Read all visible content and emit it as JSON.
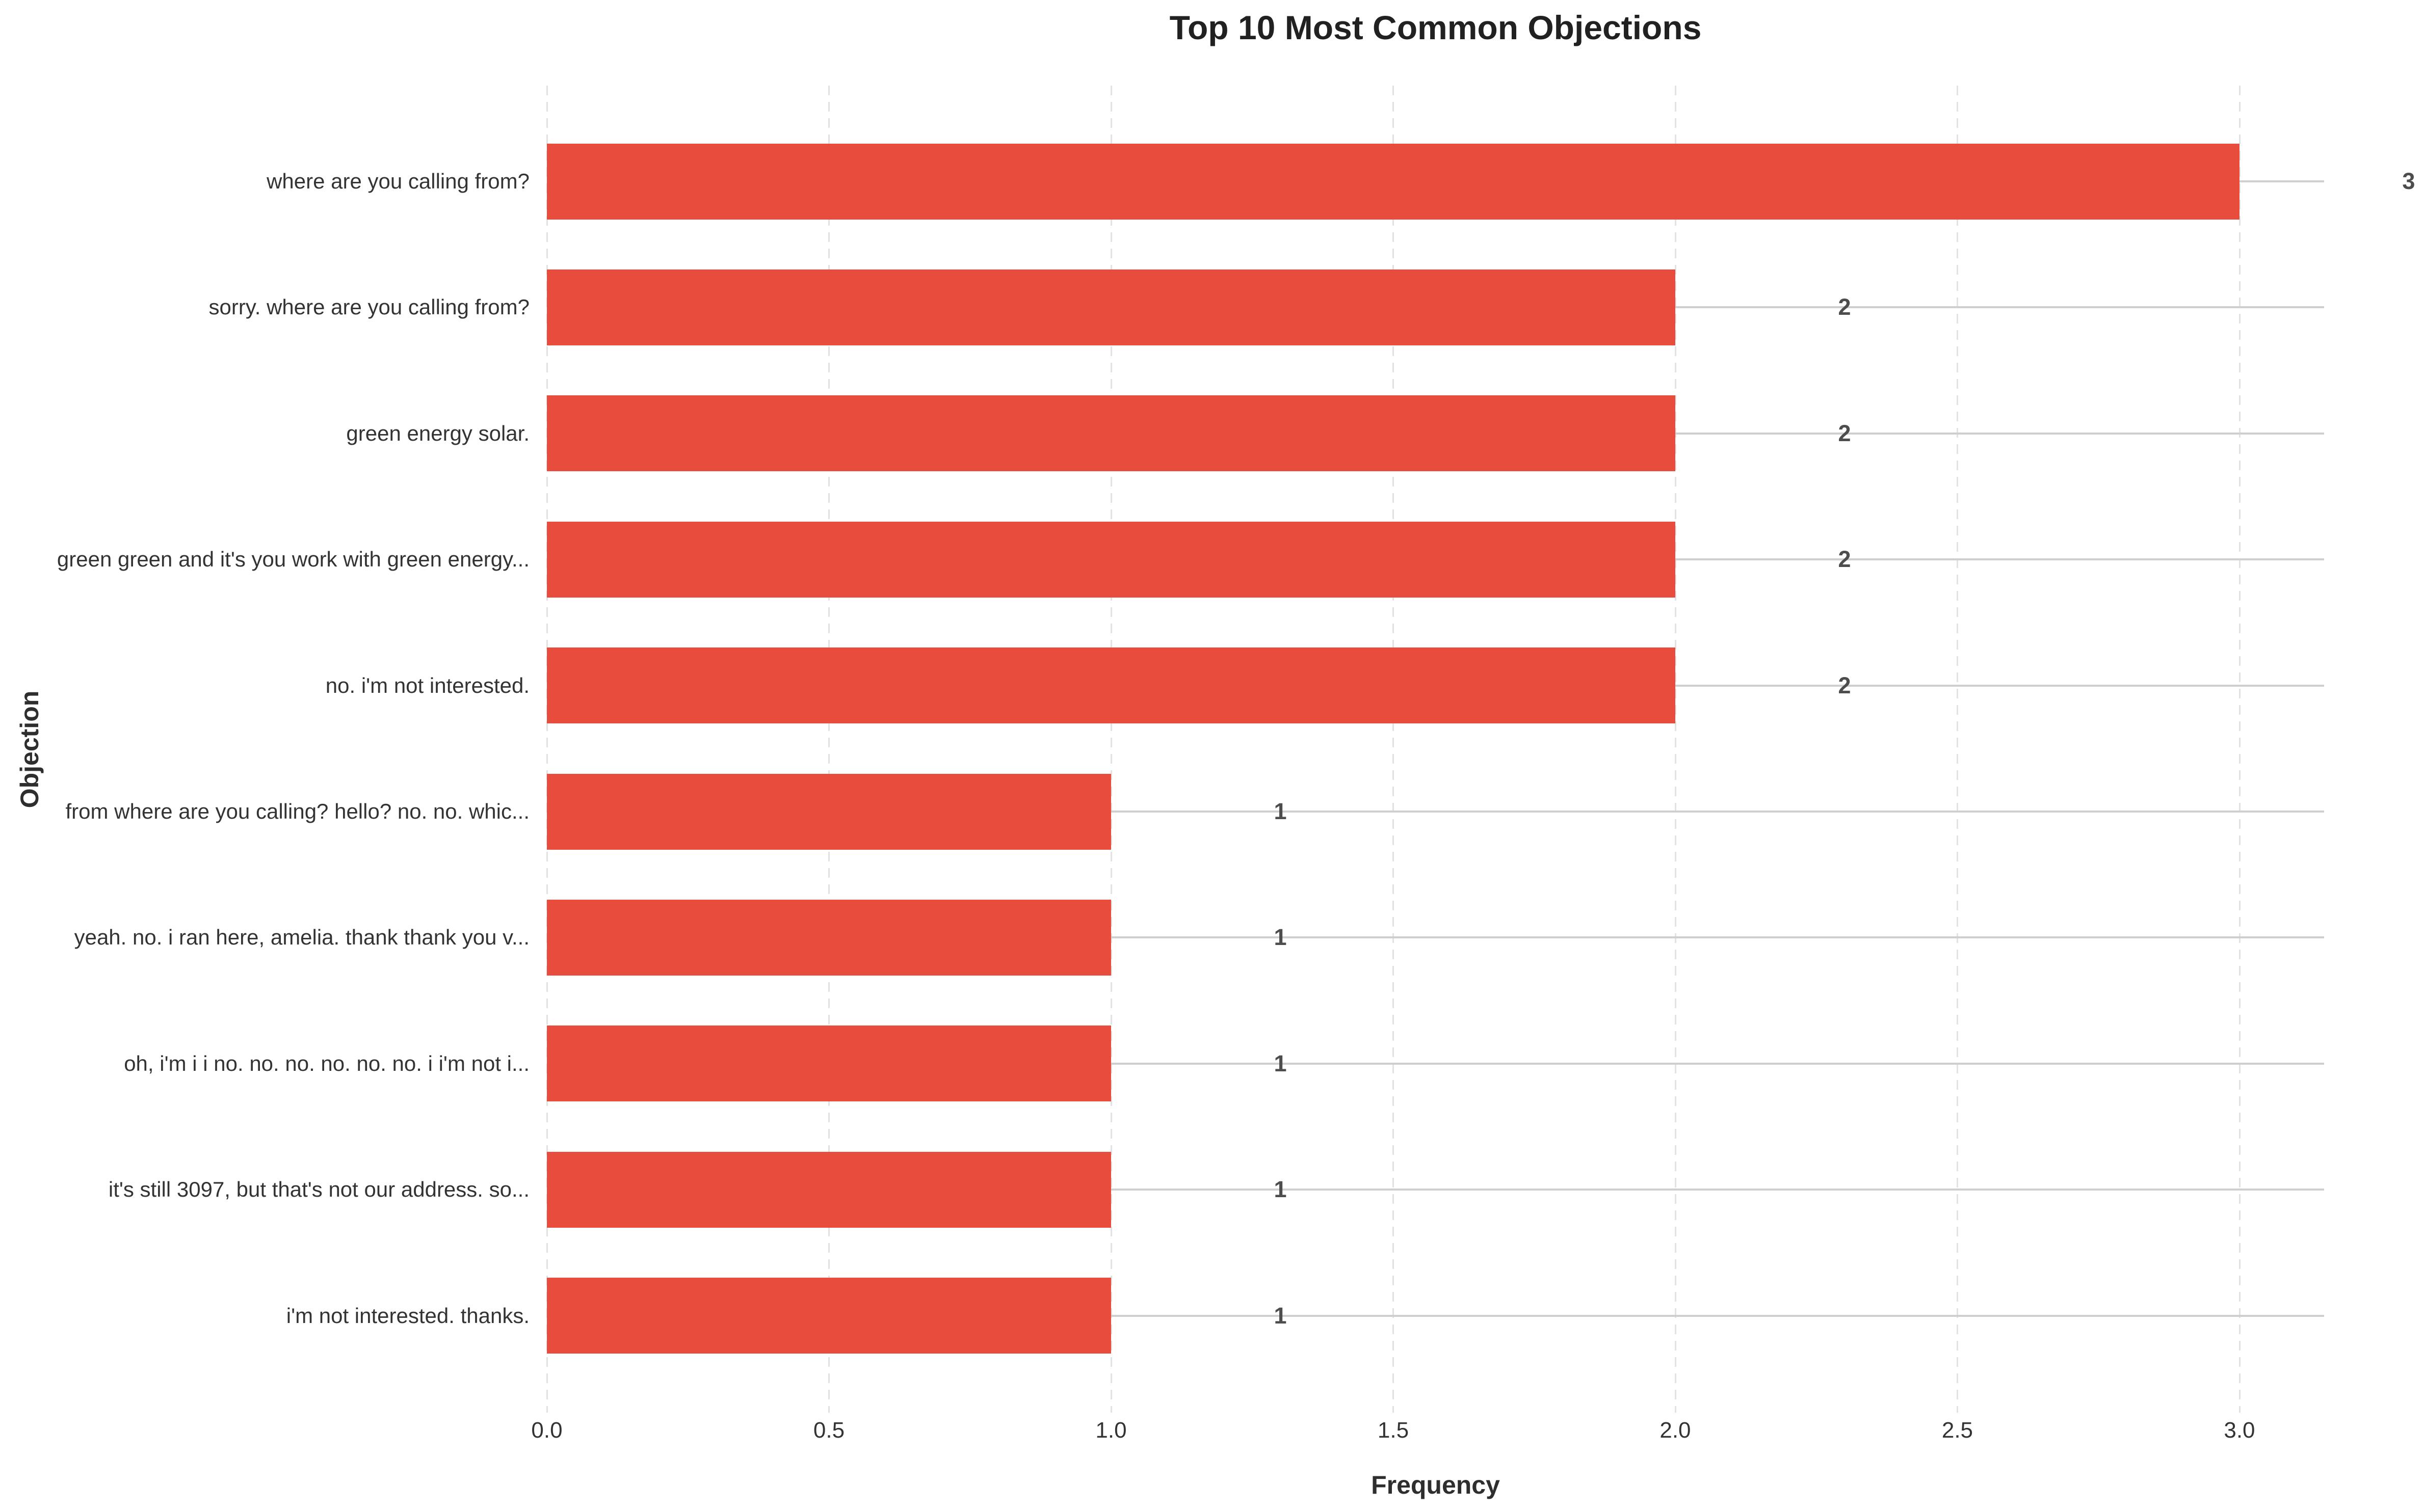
{
  "chart_data": {
    "type": "bar",
    "orientation": "horizontal",
    "title": "Top 10 Most Common Objections",
    "xlabel": "Frequency",
    "ylabel": "Objection",
    "categories": [
      "where are you calling from?",
      "sorry. where are you calling from?",
      "green energy solar.",
      "green green and it's you work with green energy...",
      "no. i'm not interested.",
      "from where are you calling? hello? no. no. whic...",
      "yeah. no. i ran here, amelia. thank thank you v...",
      "oh, i'm i i no. no. no. no. no. no. i i'm not i...",
      "it's still 3097, but that's not our address. so...",
      "i'm not interested. thanks."
    ],
    "values": [
      3,
      2,
      2,
      2,
      2,
      1,
      1,
      1,
      1,
      1
    ],
    "bar_labels": [
      "3",
      "2",
      "2",
      "2",
      "2",
      "1",
      "1",
      "1",
      "1",
      "1"
    ],
    "xticks": [
      0,
      0.5,
      1,
      1.5,
      2,
      2.5,
      3
    ],
    "xtick_labels": [
      "0.0",
      "0.5",
      "1.0",
      "1.5",
      "2.0",
      "2.5",
      "3.0"
    ],
    "xlim": [
      0,
      3.15
    ],
    "grid": {
      "x_gridlines": "dashed",
      "y_gridlines": "solid"
    },
    "legend": null
  },
  "colors": {
    "bar": "#e74c3c",
    "h_gridline": "#cfcfcf",
    "v_gridline": "#e2e2e2",
    "title_text": "#212121",
    "tick_text": "#333333",
    "value_text": "#4d4d4d",
    "background": "#ffffff"
  }
}
